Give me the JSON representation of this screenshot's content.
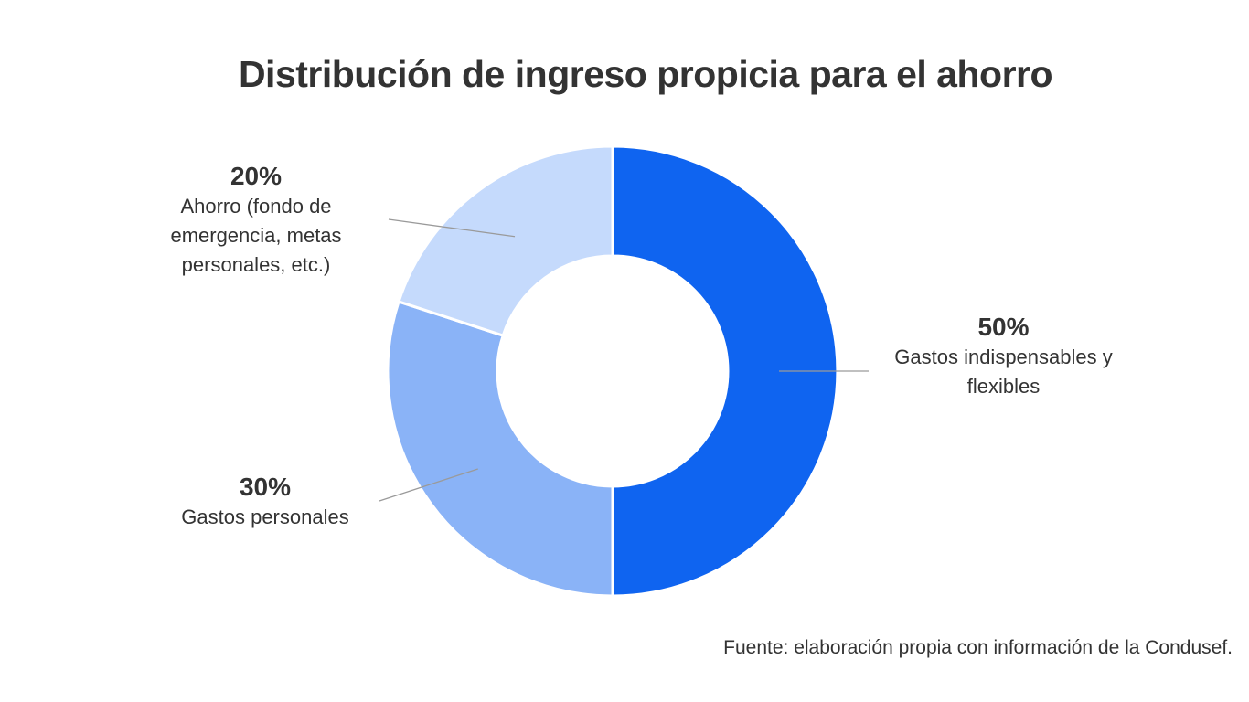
{
  "title": "Distribución de ingreso propicia para el ahorro",
  "source": "Fuente: elaboración propia con información de la Condusef.",
  "chart_data": {
    "type": "pie",
    "style": "donut",
    "title": "Distribución de ingreso propicia para el ahorro",
    "slices": [
      {
        "label": "Gastos indispensables y flexibles",
        "value": 50,
        "value_label": "50%",
        "color": "#0f64f0"
      },
      {
        "label": "Gastos personales",
        "value": 30,
        "value_label": "30%",
        "color": "#8ab3f7"
      },
      {
        "label": "Ahorro (fondo de emergencia, metas personales, etc.)",
        "value": 20,
        "value_label": "20%",
        "color": "#c5dafc"
      }
    ]
  }
}
